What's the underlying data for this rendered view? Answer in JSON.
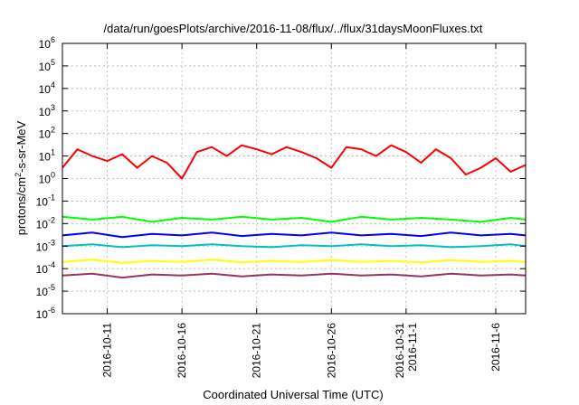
{
  "chart_data": {
    "type": "line",
    "title": "/data/run/goesPlots/archive/2016-11-08/flux/../flux/31daysMoonFluxes.txt",
    "xlabel": "Coordinated Universal Time (UTC)",
    "ylabel": {
      "prefix": "protons/cm",
      "sup": "2",
      "suffix": "-s-sr-MeV"
    },
    "y_scale": "log",
    "ylim": [
      1e-06,
      1000000.0
    ],
    "y_ticks": [
      {
        "value": 1e-06,
        "base": "10",
        "exp": "-6"
      },
      {
        "value": 1e-05,
        "base": "10",
        "exp": "-5"
      },
      {
        "value": 0.0001,
        "base": "10",
        "exp": "-4"
      },
      {
        "value": 0.001,
        "base": "10",
        "exp": "-3"
      },
      {
        "value": 0.01,
        "base": "10",
        "exp": "-2"
      },
      {
        "value": 0.1,
        "base": "10",
        "exp": "-1"
      },
      {
        "value": 1.0,
        "base": "10",
        "exp": "0"
      },
      {
        "value": 10.0,
        "base": "10",
        "exp": "1"
      },
      {
        "value": 100.0,
        "base": "10",
        "exp": "2"
      },
      {
        "value": 1000.0,
        "base": "10",
        "exp": "3"
      },
      {
        "value": 10000.0,
        "base": "10",
        "exp": "4"
      },
      {
        "value": 100000.0,
        "base": "10",
        "exp": "5"
      },
      {
        "value": 1000000.0,
        "base": "10",
        "exp": "6"
      }
    ],
    "xlim": [
      "2016-10-08",
      "2016-11-08"
    ],
    "x_ticks": [
      {
        "date": "2016-10-11",
        "lines": [
          "2016-10-11"
        ]
      },
      {
        "date": "2016-10-16",
        "lines": [
          "2016-10-16"
        ]
      },
      {
        "date": "2016-10-21",
        "lines": [
          "2016-10-21"
        ]
      },
      {
        "date": "2016-10-26",
        "lines": [
          "2016-10-26"
        ]
      },
      {
        "date": "2016-10-31",
        "lines": [
          "2016-10-31",
          "2016-11-1"
        ]
      },
      {
        "date": "2016-11-06",
        "lines": [
          "2016-11-6"
        ]
      }
    ],
    "grid": true,
    "legend": false,
    "series": [
      {
        "color": "#ff0000",
        "x": [
          "2016-10-08",
          "2016-10-09",
          "2016-10-10",
          "2016-10-11",
          "2016-10-12",
          "2016-10-13",
          "2016-10-14",
          "2016-10-15",
          "2016-10-16",
          "2016-10-17",
          "2016-10-18",
          "2016-10-19",
          "2016-10-20",
          "2016-10-21",
          "2016-10-22",
          "2016-10-23",
          "2016-10-24",
          "2016-10-25",
          "2016-10-26",
          "2016-10-27",
          "2016-10-28",
          "2016-10-29",
          "2016-10-30",
          "2016-10-31",
          "2016-11-01",
          "2016-11-02",
          "2016-11-03",
          "2016-11-04",
          "2016-11-05",
          "2016-11-06",
          "2016-11-07",
          "2016-11-08"
        ],
        "y": [
          3,
          20,
          10,
          6,
          12,
          3,
          10,
          5,
          1,
          15,
          25,
          10,
          30,
          20,
          12,
          25,
          15,
          8,
          3,
          25,
          20,
          10,
          30,
          15,
          5,
          20,
          8,
          1.5,
          3,
          8,
          2,
          4
        ]
      },
      {
        "color": "#00ff00",
        "x": [
          "2016-10-08",
          "2016-10-10",
          "2016-10-12",
          "2016-10-14",
          "2016-10-16",
          "2016-10-18",
          "2016-10-20",
          "2016-10-22",
          "2016-10-24",
          "2016-10-26",
          "2016-10-28",
          "2016-10-30",
          "2016-11-01",
          "2016-11-03",
          "2016-11-05",
          "2016-11-07",
          "2016-11-08"
        ],
        "y": [
          0.02,
          0.015,
          0.02,
          0.012,
          0.018,
          0.015,
          0.02,
          0.015,
          0.018,
          0.012,
          0.02,
          0.015,
          0.018,
          0.015,
          0.012,
          0.018,
          0.015
        ]
      },
      {
        "color": "#00c0c0",
        "x": [
          "2016-10-08",
          "2016-10-10",
          "2016-10-12",
          "2016-10-14",
          "2016-10-16",
          "2016-10-18",
          "2016-10-20",
          "2016-10-22",
          "2016-10-24",
          "2016-10-26",
          "2016-10-28",
          "2016-10-30",
          "2016-11-01",
          "2016-11-03",
          "2016-11-05",
          "2016-11-07",
          "2016-11-08"
        ],
        "y": [
          0.001,
          0.0012,
          0.0009,
          0.0011,
          0.001,
          0.0012,
          0.001,
          0.0009,
          0.0011,
          0.001,
          0.0012,
          0.001,
          0.0011,
          0.0009,
          0.001,
          0.0012,
          0.001
        ]
      },
      {
        "color": "#0000ff",
        "x": [
          "2016-10-08",
          "2016-10-10",
          "2016-10-12",
          "2016-10-14",
          "2016-10-16",
          "2016-10-18",
          "2016-10-20",
          "2016-10-22",
          "2016-10-24",
          "2016-10-26",
          "2016-10-28",
          "2016-10-30",
          "2016-11-01",
          "2016-11-03",
          "2016-11-05",
          "2016-11-07",
          "2016-11-08"
        ],
        "y": [
          0.003,
          0.004,
          0.0025,
          0.0035,
          0.003,
          0.004,
          0.0028,
          0.0035,
          0.003,
          0.004,
          0.003,
          0.0035,
          0.0028,
          0.004,
          0.003,
          0.0035,
          0.003
        ]
      },
      {
        "color": "#ffff00",
        "x": [
          "2016-10-08",
          "2016-10-10",
          "2016-10-12",
          "2016-10-14",
          "2016-10-16",
          "2016-10-18",
          "2016-10-20",
          "2016-10-22",
          "2016-10-24",
          "2016-10-26",
          "2016-10-28",
          "2016-10-30",
          "2016-11-01",
          "2016-11-03",
          "2016-11-05",
          "2016-11-07",
          "2016-11-08"
        ],
        "y": [
          0.0002,
          0.00025,
          0.00018,
          0.00022,
          0.0002,
          0.00025,
          0.00019,
          0.00022,
          0.0002,
          0.00024,
          0.0002,
          0.00022,
          0.00019,
          0.00024,
          0.0002,
          0.00022,
          0.0002
        ]
      },
      {
        "color": "#993366",
        "x": [
          "2016-10-08",
          "2016-10-10",
          "2016-10-12",
          "2016-10-14",
          "2016-10-16",
          "2016-10-18",
          "2016-10-20",
          "2016-10-22",
          "2016-10-24",
          "2016-10-26",
          "2016-10-28",
          "2016-10-30",
          "2016-11-01",
          "2016-11-03",
          "2016-11-05",
          "2016-11-07",
          "2016-11-08"
        ],
        "y": [
          5e-05,
          6e-05,
          4e-05,
          5.5e-05,
          5e-05,
          6e-05,
          4.5e-05,
          5.5e-05,
          5e-05,
          6e-05,
          5e-05,
          5.5e-05,
          4.5e-05,
          6e-05,
          5e-05,
          5.5e-05,
          5e-05
        ]
      }
    ]
  }
}
